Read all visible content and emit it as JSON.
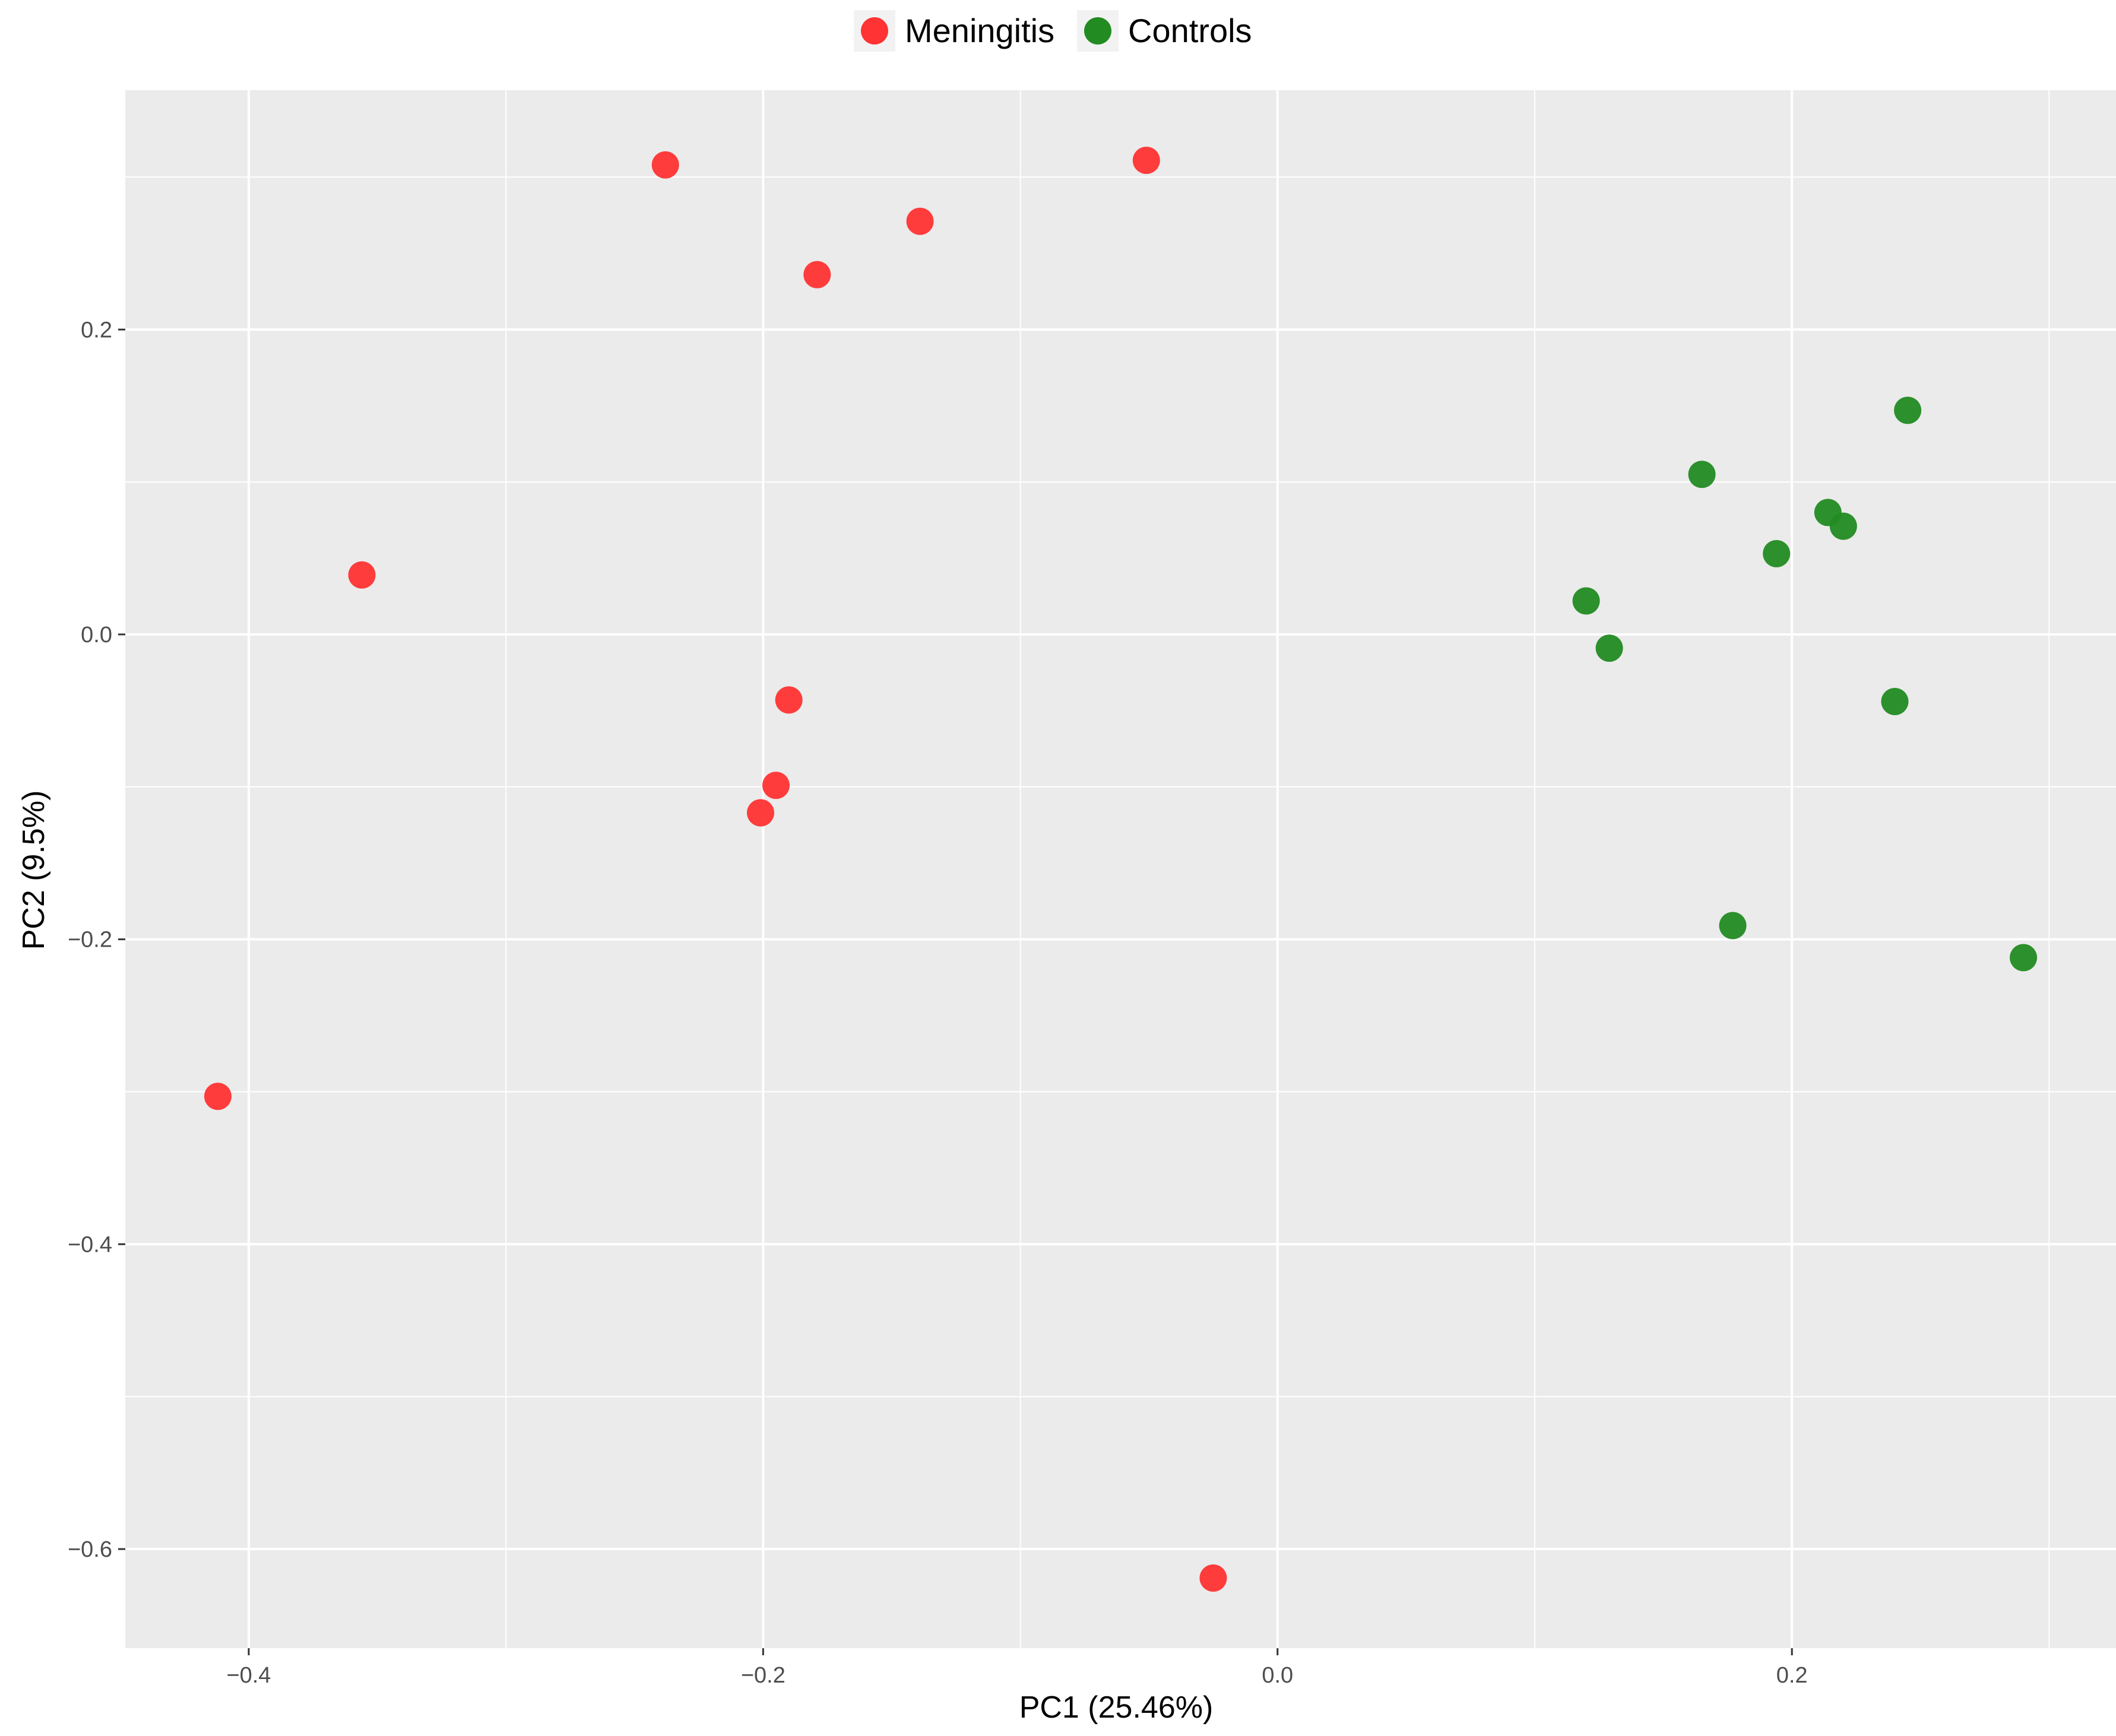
{
  "chart_data": {
    "type": "scatter",
    "title": "",
    "xlabel": "PC1 (25.46%)",
    "ylabel": "PC2 (9.5%)",
    "xlim": [
      -0.448,
      0.326
    ],
    "ylim": [
      -0.665,
      0.357
    ],
    "x_ticks": [
      -0.4,
      -0.2,
      0.0,
      0.2
    ],
    "x_tick_labels": [
      "−0.4",
      "−0.2",
      "0.0",
      "0.2"
    ],
    "y_ticks": [
      -0.6,
      -0.4,
      -0.2,
      0.0,
      0.2
    ],
    "y_tick_labels": [
      "−0.6",
      "−0.4",
      "−0.2",
      "0.0",
      "0.2"
    ],
    "grid": true,
    "legend_position": "top",
    "series": [
      {
        "name": "Meningitis",
        "color": "#ff3333",
        "points": [
          {
            "x": -0.238,
            "y": 0.308
          },
          {
            "x": -0.051,
            "y": 0.311
          },
          {
            "x": -0.139,
            "y": 0.271
          },
          {
            "x": -0.179,
            "y": 0.236
          },
          {
            "x": -0.356,
            "y": 0.039
          },
          {
            "x": -0.19,
            "y": -0.043
          },
          {
            "x": -0.195,
            "y": -0.099
          },
          {
            "x": -0.201,
            "y": -0.117
          },
          {
            "x": -0.412,
            "y": -0.303
          },
          {
            "x": -0.025,
            "y": -0.619
          }
        ]
      },
      {
        "name": "Controls",
        "color": "#228b22",
        "points": [
          {
            "x": 0.245,
            "y": 0.147
          },
          {
            "x": 0.165,
            "y": 0.105
          },
          {
            "x": 0.214,
            "y": 0.08
          },
          {
            "x": 0.22,
            "y": 0.071
          },
          {
            "x": 0.194,
            "y": 0.053
          },
          {
            "x": 0.12,
            "y": 0.022
          },
          {
            "x": 0.129,
            "y": -0.009
          },
          {
            "x": 0.24,
            "y": -0.044
          },
          {
            "x": 0.177,
            "y": -0.191
          },
          {
            "x": 0.29,
            "y": -0.212
          }
        ]
      }
    ]
  }
}
